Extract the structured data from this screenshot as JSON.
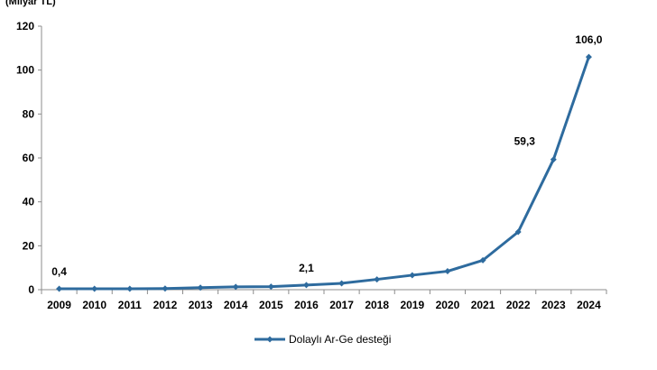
{
  "chart_data": {
    "type": "line",
    "unit_label": "(Milyar TL)",
    "x": [
      "2009",
      "2010",
      "2011",
      "2012",
      "2013",
      "2014",
      "2015",
      "2016",
      "2017",
      "2018",
      "2019",
      "2020",
      "2021",
      "2022",
      "2023",
      "2024"
    ],
    "series": [
      {
        "name": "Dolaylı Ar-Ge desteği",
        "color": "#2E6B9E",
        "values": [
          0.4,
          0.4,
          0.4,
          0.5,
          0.9,
          1.3,
          1.4,
          2.1,
          2.9,
          4.7,
          6.6,
          8.4,
          13.4,
          26.3,
          59.3,
          106.0
        ]
      }
    ],
    "data_labels": [
      {
        "x": "2009",
        "text": "0,4"
      },
      {
        "x": "2016",
        "text": "2,1"
      },
      {
        "x": "2023",
        "text": "59,3"
      },
      {
        "x": "2024",
        "text": "106,0"
      }
    ],
    "ylim": [
      0,
      120
    ],
    "yticks": [
      "0",
      "20",
      "40",
      "60",
      "80",
      "100",
      "120"
    ],
    "grid": false,
    "legend_position": "bottom"
  }
}
